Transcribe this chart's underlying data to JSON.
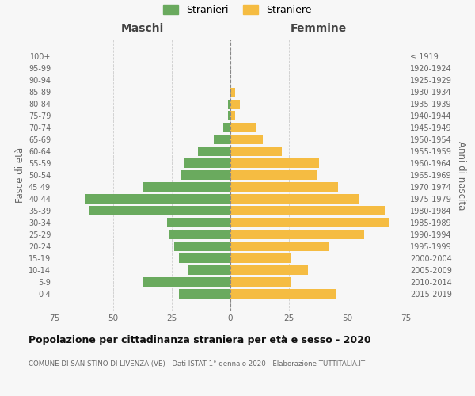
{
  "age_groups": [
    "0-4",
    "5-9",
    "10-14",
    "15-19",
    "20-24",
    "25-29",
    "30-34",
    "35-39",
    "40-44",
    "45-49",
    "50-54",
    "55-59",
    "60-64",
    "65-69",
    "70-74",
    "75-79",
    "80-84",
    "85-89",
    "90-94",
    "95-99",
    "100+"
  ],
  "birth_years": [
    "2015-2019",
    "2010-2014",
    "2005-2009",
    "2000-2004",
    "1995-1999",
    "1990-1994",
    "1985-1989",
    "1980-1984",
    "1975-1979",
    "1970-1974",
    "1965-1969",
    "1960-1964",
    "1955-1959",
    "1950-1954",
    "1945-1949",
    "1940-1944",
    "1935-1939",
    "1930-1934",
    "1925-1929",
    "1920-1924",
    "≤ 1919"
  ],
  "maschi": [
    22,
    37,
    18,
    22,
    24,
    26,
    27,
    60,
    62,
    37,
    21,
    20,
    14,
    7,
    3,
    1,
    1,
    0,
    0,
    0,
    0
  ],
  "femmine": [
    45,
    26,
    33,
    26,
    42,
    57,
    68,
    66,
    55,
    46,
    37,
    38,
    22,
    14,
    11,
    2,
    4,
    2,
    0,
    0,
    0
  ],
  "maschi_color": "#6aaa5e",
  "femmine_color": "#f5bc42",
  "bg_color": "#f7f7f7",
  "grid_color": "#cccccc",
  "title": "Popolazione per cittadinanza straniera per età e sesso - 2020",
  "subtitle": "COMUNE DI SAN STINO DI LIVENZA (VE) - Dati ISTAT 1° gennaio 2020 - Elaborazione TUTTITALIA.IT",
  "xlabel_left": "Maschi",
  "xlabel_right": "Femmine",
  "ylabel_left": "Fasce di età",
  "ylabel_right": "Anni di nascita",
  "legend_maschi": "Stranieri",
  "legend_femmine": "Straniere",
  "xlim": 75
}
